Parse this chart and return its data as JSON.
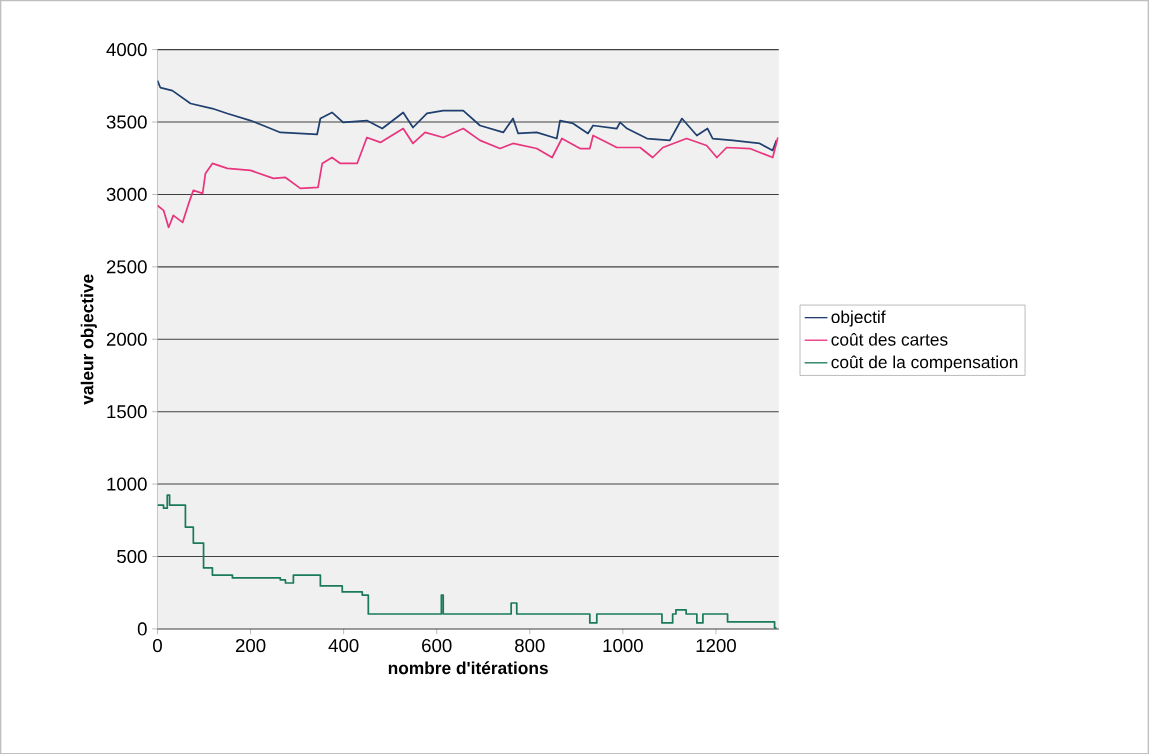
{
  "chart_data": {
    "type": "line",
    "xlabel": "nombre d'itérations",
    "ylabel": "valeur objective",
    "xlim": [
      0,
      1335
    ],
    "ylim": [
      0,
      4000
    ],
    "xticks": [
      0,
      200,
      400,
      600,
      800,
      1000,
      1200
    ],
    "yticks": [
      0,
      500,
      1000,
      1500,
      2000,
      2500,
      3000,
      3500,
      4000
    ],
    "grid": "y",
    "legend": "right",
    "series": [
      {
        "name": "objectif",
        "color": "#1f3f6e",
        "x": [
          0,
          6,
          32,
          71,
          118,
          150,
          200,
          227,
          264,
          343,
          350,
          375,
          399,
          450,
          483,
          528,
          549,
          579,
          614,
          657,
          693,
          743,
          764,
          775,
          815,
          858,
          865,
          893,
          925,
          936,
          987,
          994,
          1009,
          1052,
          1101,
          1127,
          1159,
          1182,
          1193,
          1236,
          1294,
          1322,
          1330
        ],
        "values": [
          3786,
          3738,
          3717,
          3628,
          3593,
          3559,
          3510,
          3476,
          3428,
          3414,
          3524,
          3566,
          3497,
          3510,
          3455,
          3566,
          3462,
          3559,
          3579,
          3579,
          3476,
          3428,
          3524,
          3421,
          3428,
          3386,
          3510,
          3490,
          3421,
          3476,
          3455,
          3497,
          3455,
          3386,
          3373,
          3524,
          3407,
          3455,
          3386,
          3373,
          3352,
          3304,
          3373
        ]
      },
      {
        "name": "coût des cartes",
        "color": "#e8367e",
        "x": [
          0,
          13,
          24,
          34,
          54,
          67,
          77,
          97,
          103,
          118,
          150,
          200,
          249,
          275,
          307,
          345,
          354,
          375,
          393,
          429,
          450,
          479,
          528,
          549,
          575,
          614,
          657,
          693,
          736,
          764,
          815,
          848,
          869,
          908,
          929,
          936,
          987,
          1037,
          1064,
          1086,
          1137,
          1180,
          1202,
          1223,
          1273,
          1322,
          1333
        ],
        "values": [
          2924,
          2890,
          2772,
          2855,
          2807,
          2938,
          3028,
          3007,
          3145,
          3214,
          3180,
          3166,
          3111,
          3117,
          3042,
          3048,
          3214,
          3255,
          3214,
          3214,
          3393,
          3359,
          3455,
          3352,
          3428,
          3393,
          3455,
          3373,
          3317,
          3352,
          3317,
          3255,
          3386,
          3317,
          3317,
          3407,
          3324,
          3324,
          3255,
          3324,
          3386,
          3338,
          3255,
          3324,
          3317,
          3255,
          3393
        ]
      },
      {
        "name": "coût de la compensation",
        "color": "#1a7a5a",
        "type": "step",
        "x": [
          0,
          13,
          21,
          26,
          60,
          77,
          99,
          118,
          161,
          264,
          275,
          292,
          350,
          397,
          440,
          453,
          610,
          614,
          760,
          772,
          929,
          944,
          1084,
          1107,
          1114,
          1136,
          1159,
          1172,
          1225,
          1326,
          1330
        ],
        "values": [
          855,
          834,
          924,
          855,
          703,
          593,
          421,
          372,
          352,
          338,
          317,
          372,
          297,
          255,
          234,
          103,
          234,
          103,
          179,
          103,
          41,
          103,
          41,
          103,
          131,
          103,
          41,
          103,
          48,
          7,
          7
        ]
      }
    ]
  }
}
